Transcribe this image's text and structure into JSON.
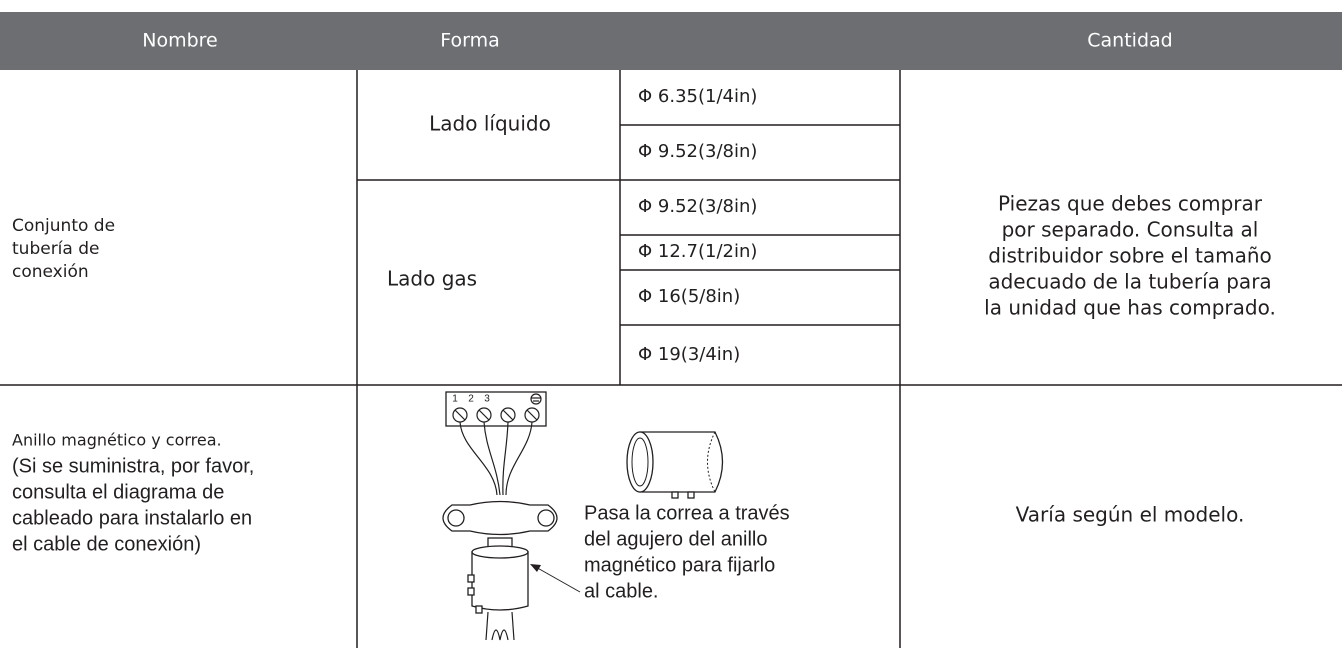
{
  "table": {
    "headers": [
      "Nombre",
      "Forma",
      "Cantidad"
    ],
    "rows": [
      {
        "name": [
          "Conjunto de",
          "tubería de",
          "conexión"
        ],
        "groups": [
          {
            "side": "Lado líquido",
            "sizes": [
              "Φ 6.35(1/4in)",
              "Φ 9.52(3/8in)"
            ]
          },
          {
            "side": "Lado gas",
            "sizes": [
              "Φ 9.52(3/8in)",
              "Φ 12.7(1/2in)",
              "Φ 16(5/8in)",
              "Φ 19(3/4in)"
            ]
          }
        ],
        "quantity": [
          "Piezas que debes comprar",
          "por separado. Consulta al",
          "distribuidor sobre el tamaño",
          "adecuado de la tubería para",
          "la unidad que has comprado."
        ]
      },
      {
        "name": "Anillo magnético y correa.",
        "note": [
          "(Si se suministra, por favor,",
          "consulta el diagrama de",
          "cableado para instalarlo en",
          "el cable de conexión)"
        ],
        "figure": {
          "terminal_labels": [
            "1",
            "2",
            "3"
          ],
          "caption": [
            "Pasa la correa a través",
            "del agujero del anillo",
            "magnético para fijarlo",
            "al cable."
          ]
        },
        "quantity": "Varía según el modelo."
      }
    ]
  }
}
